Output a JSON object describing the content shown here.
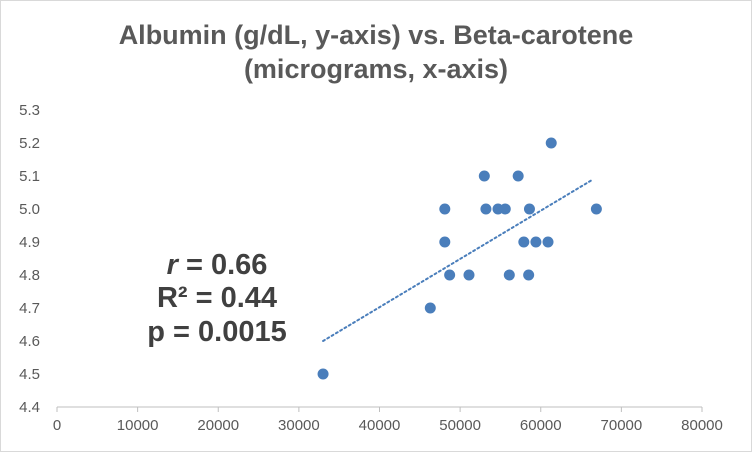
{
  "chart_data": {
    "type": "scatter",
    "title_line1": "Albumin (g/dL, y-axis) vs. Beta-carotene",
    "title_line2": "(micrograms, x-axis)",
    "xlim": [
      0,
      80000
    ],
    "ylim": [
      4.4,
      5.3
    ],
    "x_ticks": [
      "0",
      "10000",
      "20000",
      "30000",
      "40000",
      "50000",
      "60000",
      "70000",
      "80000"
    ],
    "y_ticks": [
      "4.4",
      "4.5",
      "4.6",
      "4.7",
      "4.8",
      "4.9",
      "5.0",
      "5.1",
      "5.2",
      "5.3"
    ],
    "grid": false,
    "marker_color": "#4a7ebb",
    "trendline": {
      "style": "dotted",
      "color": "#4a7ebb",
      "x": [
        33000,
        66500
      ],
      "y": [
        4.6,
        5.09
      ]
    },
    "points": [
      {
        "x": 33000,
        "y": 4.5
      },
      {
        "x": 46300,
        "y": 4.7
      },
      {
        "x": 48100,
        "y": 4.9
      },
      {
        "x": 48100,
        "y": 5.0
      },
      {
        "x": 48700,
        "y": 4.8
      },
      {
        "x": 51100,
        "y": 4.8
      },
      {
        "x": 53000,
        "y": 5.1
      },
      {
        "x": 53200,
        "y": 5.0
      },
      {
        "x": 54700,
        "y": 5.0
      },
      {
        "x": 55600,
        "y": 5.0
      },
      {
        "x": 56100,
        "y": 4.8
      },
      {
        "x": 57200,
        "y": 5.1
      },
      {
        "x": 57900,
        "y": 4.9
      },
      {
        "x": 58500,
        "y": 4.8
      },
      {
        "x": 58600,
        "y": 5.0
      },
      {
        "x": 59400,
        "y": 4.9
      },
      {
        "x": 60900,
        "y": 4.9
      },
      {
        "x": 61300,
        "y": 5.2
      },
      {
        "x": 66900,
        "y": 5.0
      }
    ],
    "annotations": {
      "r_symbol": "r",
      "r_value": " = 0.66",
      "r2": "R² = 0.44",
      "p": "p = 0.0015"
    }
  }
}
